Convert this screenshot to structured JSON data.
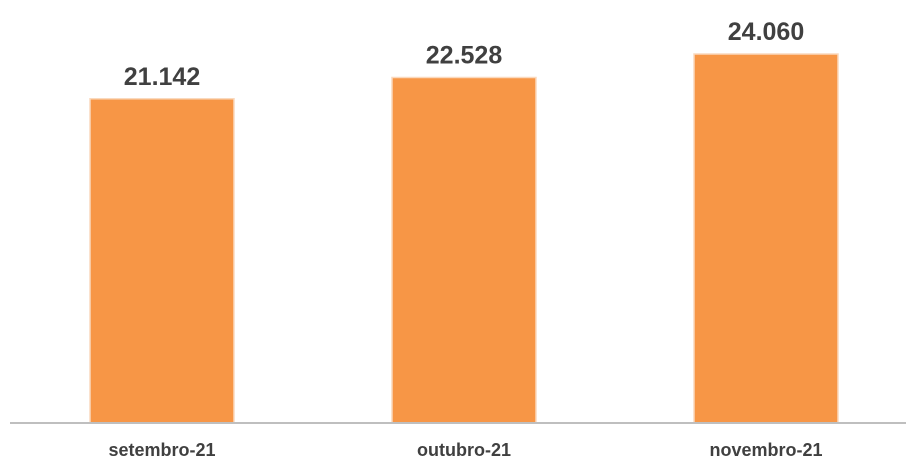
{
  "chart_data": {
    "type": "bar",
    "categories": [
      "setembro-21",
      "outubro-21",
      "novembro-21"
    ],
    "values": [
      21142,
      22528,
      24060
    ],
    "value_labels": [
      "21.142",
      "22.528",
      "24.060"
    ],
    "title": "",
    "xlabel": "",
    "ylabel": "",
    "bar_color": "#F79646",
    "bar_edge_color": "#FAD9BD",
    "axis_color": "#BFBFBF",
    "label_color": "#404040",
    "grid": false,
    "legend": "none"
  }
}
